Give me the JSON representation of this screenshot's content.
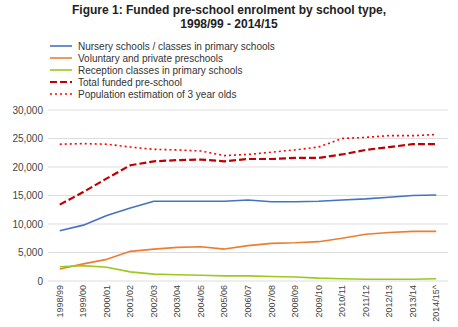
{
  "chart_data": {
    "type": "line",
    "title": "Figure 1: Funded pre-school enrolment by school type,",
    "subtitle": "1998/99 - 2014/15",
    "categories": [
      "1998/99",
      "1999/00",
      "2000/01",
      "2001/02",
      "2002/03",
      "2003/04",
      "2004/05",
      "2005/06",
      "2006/07",
      "2007/08",
      "2008/09",
      "2009/10",
      "2010/11",
      "2011/12",
      "2012/13",
      "2013/14",
      "2014/15^"
    ],
    "series": [
      {
        "name": "Nursery schools / classes in primary schools",
        "color": "#4472C4",
        "line_style": "solid",
        "values": [
          8800,
          9800,
          11500,
          12800,
          14000,
          14000,
          14000,
          14000,
          14200,
          13900,
          13900,
          14000,
          14200,
          14400,
          14700,
          15000,
          15100
        ]
      },
      {
        "name": "Voluntary and private preschools",
        "color": "#ED7D31",
        "line_style": "solid",
        "values": [
          2100,
          3000,
          3800,
          5200,
          5600,
          5900,
          6000,
          5600,
          6200,
          6600,
          6700,
          6900,
          7500,
          8200,
          8500,
          8700,
          8700
        ]
      },
      {
        "name": "Reception classes in primary schools",
        "color": "#9DC820",
        "line_style": "solid",
        "values": [
          2500,
          2700,
          2400,
          1600,
          1200,
          1100,
          1000,
          900,
          900,
          800,
          700,
          500,
          400,
          300,
          300,
          300,
          400
        ]
      },
      {
        "name": "Total funded pre-school",
        "color": "#C00000",
        "line_style": "dashed",
        "values": [
          13400,
          15600,
          18000,
          20300,
          21000,
          21200,
          21300,
          21000,
          21400,
          21400,
          21600,
          21600,
          22200,
          23000,
          23500,
          24000,
          24000
        ]
      },
      {
        "name": "Population estimation of 3 year olds",
        "color": "#FF0000",
        "line_style": "dotted",
        "values": [
          24000,
          24100,
          24000,
          23500,
          23100,
          23000,
          22800,
          22000,
          22200,
          22600,
          23000,
          23500,
          25000,
          25200,
          25500,
          25500,
          25700
        ]
      }
    ],
    "ylim": [
      0,
      30000
    ],
    "yticks": [
      0,
      {
        "value": 5000,
        "label": "5,000"
      },
      {
        "value": 10000,
        "label": "10,000"
      },
      {
        "value": 15000,
        "label": "15,000"
      },
      {
        "value": 20000,
        "label": "20,000"
      },
      {
        "value": 25000,
        "label": "25,000"
      },
      {
        "value": 30000,
        "label": "30,000"
      }
    ],
    "grid": true,
    "legend": "top"
  }
}
